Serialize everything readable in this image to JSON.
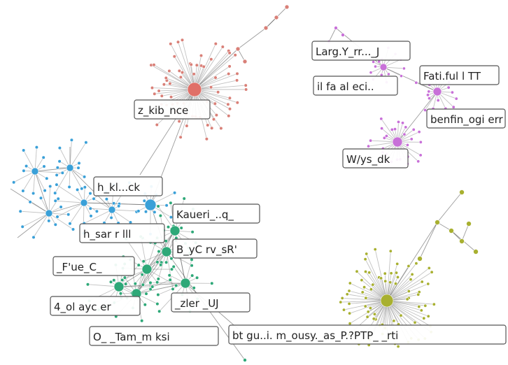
{
  "graph": {
    "colors": {
      "red": "#d98078",
      "red_hub": "#e07068",
      "pink": "#c870d8",
      "blue": "#3aa0d8",
      "green": "#2ea878",
      "olive": "#a8b030"
    },
    "labels": [
      {
        "id": "zuckibonce",
        "text": "z_kib_nce"
      },
      {
        "id": "larg-y",
        "text": "Larg.Y_rr..._J"
      },
      {
        "id": "fati",
        "text": "Fati.ful l TT"
      },
      {
        "id": "ilfa",
        "text": "il fa al eci.."
      },
      {
        "id": "benfin",
        "text": "benfin_ogi err"
      },
      {
        "id": "wys",
        "text": "W/ys_dk"
      },
      {
        "id": "hakl",
        "text": "h_kl...ck"
      },
      {
        "id": "kaderi",
        "text": "Kaueri_..q_"
      },
      {
        "id": "husar",
        "text": "h_sar r lll"
      },
      {
        "id": "bycirvs",
        "text": "B_yC rv_sR'"
      },
      {
        "id": "ftue",
        "text": "_F'ue_C_"
      },
      {
        "id": "zler",
        "text": "_zler _UJ"
      },
      {
        "id": "kolay",
        "text": "4_ol ayc er"
      },
      {
        "id": "otam",
        "text": "O_ _Tam_m ksi"
      },
      {
        "id": "btgu",
        "text": "bt gu..i. m_ousy._as_P.?PTP_ _rti"
      }
    ]
  }
}
